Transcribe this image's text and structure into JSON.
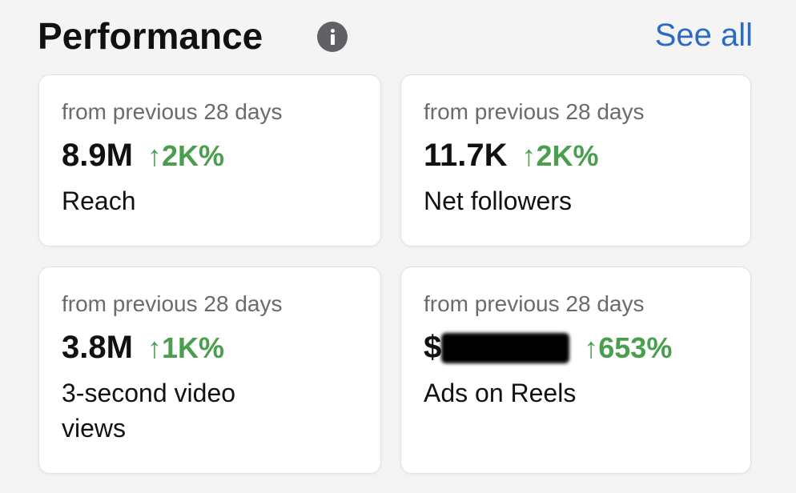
{
  "header": {
    "title": "Performance",
    "link": "See all"
  },
  "cards": [
    {
      "period": "from previous 28 days",
      "value": "8.9M",
      "change": "↑2K%",
      "label": "Reach"
    },
    {
      "period": "from previous 28 days",
      "value": "11.7K",
      "change": "↑2K%",
      "label": "Net followers"
    },
    {
      "period": "from previous 28 days",
      "value": "3.8M",
      "change": "↑1K%",
      "label": "3-second video views"
    },
    {
      "period": "from previous 28 days",
      "value": "$",
      "change": "↑653%",
      "label": "Ads on Reels"
    }
  ]
}
